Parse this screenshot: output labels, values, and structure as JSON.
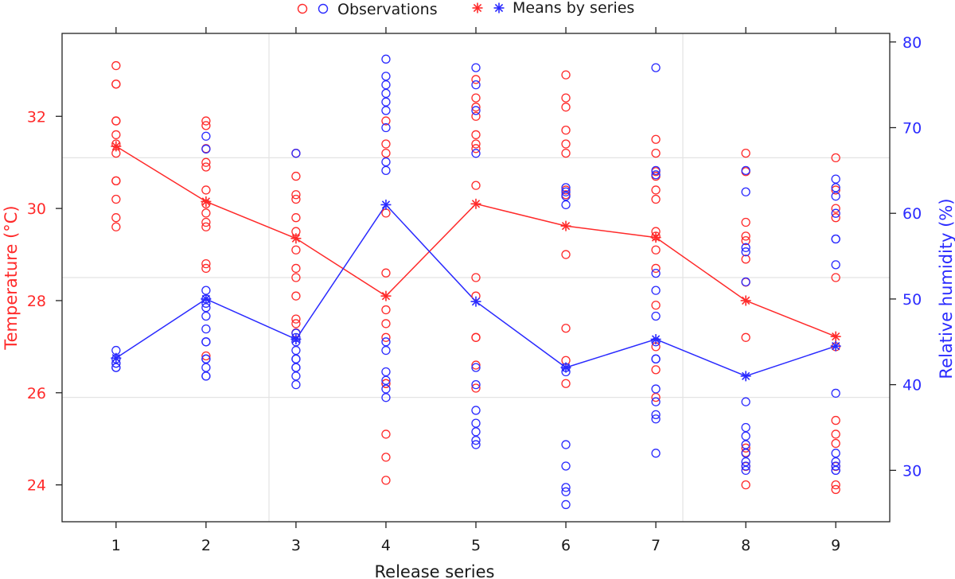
{
  "chart_data": {
    "type": "scatter",
    "xlabel": "Release series",
    "ylabel_left": "Temperature (°C)",
    "ylabel_right": "Relative humidity (%)",
    "xlim": [
      0.4,
      9.6
    ],
    "ylim_left": [
      23.2,
      33.8
    ],
    "ylim_right": [
      24,
      81
    ],
    "x_ticks": [
      1,
      2,
      3,
      4,
      5,
      6,
      7,
      8,
      9
    ],
    "y_ticks_left": [
      24,
      26,
      28,
      30,
      32
    ],
    "y_ticks_right": [
      30,
      40,
      50,
      60,
      70,
      80
    ],
    "grid_x": [
      2.7,
      7.3
    ],
    "grid_y_left": [
      25.9,
      28.5,
      31.1
    ],
    "colors": {
      "temperature": "#ff2a2a",
      "humidity": "#2a2aff"
    },
    "legend": {
      "observations_label": "Observations",
      "means_label": "Means by series",
      "position": "top"
    },
    "series": [
      {
        "name": "Temperature observations",
        "axis": "left",
        "points": [
          [
            1,
            33.1
          ],
          [
            1,
            32.7
          ],
          [
            1,
            32.7
          ],
          [
            1,
            31.9
          ],
          [
            1,
            31.9
          ],
          [
            1,
            31.6
          ],
          [
            1,
            31.4
          ],
          [
            1,
            31.2
          ],
          [
            1,
            30.6
          ],
          [
            1,
            30.6
          ],
          [
            1,
            30.2
          ],
          [
            1,
            29.8
          ],
          [
            1,
            29.6
          ],
          [
            2,
            31.9
          ],
          [
            2,
            31.8
          ],
          [
            2,
            31.3
          ],
          [
            2,
            31.0
          ],
          [
            2,
            30.9
          ],
          [
            2,
            30.4
          ],
          [
            2,
            30.1
          ],
          [
            2,
            29.9
          ],
          [
            2,
            29.7
          ],
          [
            2,
            29.6
          ],
          [
            2,
            28.8
          ],
          [
            2,
            28.7
          ],
          [
            2,
            26.8
          ],
          [
            3,
            31.2
          ],
          [
            3,
            30.7
          ],
          [
            3,
            30.3
          ],
          [
            3,
            30.2
          ],
          [
            3,
            29.8
          ],
          [
            3,
            29.5
          ],
          [
            3,
            29.1
          ],
          [
            3,
            28.7
          ],
          [
            3,
            28.5
          ],
          [
            3,
            28.1
          ],
          [
            3,
            27.6
          ],
          [
            3,
            27.5
          ],
          [
            3,
            27.3
          ],
          [
            4,
            31.9
          ],
          [
            4,
            31.4
          ],
          [
            4,
            31.2
          ],
          [
            4,
            29.9
          ],
          [
            4,
            28.6
          ],
          [
            4,
            27.8
          ],
          [
            4,
            27.5
          ],
          [
            4,
            27.2
          ],
          [
            4,
            26.2
          ],
          [
            4,
            26.2
          ],
          [
            4,
            25.1
          ],
          [
            4,
            24.6
          ],
          [
            4,
            24.1
          ],
          [
            5,
            32.8
          ],
          [
            5,
            32.4
          ],
          [
            5,
            32.2
          ],
          [
            5,
            32.0
          ],
          [
            5,
            31.6
          ],
          [
            5,
            31.4
          ],
          [
            5,
            31.3
          ],
          [
            5,
            30.5
          ],
          [
            5,
            28.5
          ],
          [
            5,
            28.1
          ],
          [
            5,
            27.2
          ],
          [
            5,
            27.2
          ],
          [
            5,
            26.6
          ],
          [
            5,
            26.1
          ],
          [
            6,
            32.9
          ],
          [
            6,
            32.4
          ],
          [
            6,
            32.2
          ],
          [
            6,
            31.7
          ],
          [
            6,
            31.4
          ],
          [
            6,
            31.2
          ],
          [
            6,
            30.4
          ],
          [
            6,
            30.3
          ],
          [
            6,
            29.0
          ],
          [
            6,
            27.4
          ],
          [
            6,
            26.7
          ],
          [
            6,
            26.2
          ],
          [
            7,
            31.5
          ],
          [
            7,
            31.2
          ],
          [
            7,
            30.8
          ],
          [
            7,
            30.7
          ],
          [
            7,
            30.4
          ],
          [
            7,
            30.2
          ],
          [
            7,
            29.5
          ],
          [
            7,
            29.4
          ],
          [
            7,
            29.1
          ],
          [
            7,
            28.7
          ],
          [
            7,
            27.9
          ],
          [
            7,
            27.0
          ],
          [
            7,
            26.5
          ],
          [
            7,
            25.9
          ],
          [
            8,
            31.2
          ],
          [
            8,
            30.8
          ],
          [
            8,
            29.7
          ],
          [
            8,
            29.4
          ],
          [
            8,
            29.3
          ],
          [
            8,
            28.9
          ],
          [
            8,
            28.4
          ],
          [
            8,
            27.2
          ],
          [
            8,
            24.8
          ],
          [
            8,
            24.7
          ],
          [
            8,
            24.4
          ],
          [
            8,
            24.0
          ],
          [
            9,
            31.1
          ],
          [
            9,
            30.4
          ],
          [
            9,
            30.0
          ],
          [
            9,
            29.8
          ],
          [
            9,
            28.5
          ],
          [
            9,
            27.0
          ],
          [
            9,
            25.4
          ],
          [
            9,
            25.1
          ],
          [
            9,
            24.9
          ],
          [
            9,
            24.4
          ],
          [
            9,
            24.0
          ],
          [
            9,
            23.9
          ]
        ]
      },
      {
        "name": "Relative humidity observations",
        "axis": "right",
        "points": [
          [
            1,
            44
          ],
          [
            1,
            43
          ],
          [
            1,
            42.5
          ],
          [
            1,
            42.5
          ],
          [
            1,
            42
          ],
          [
            1,
            42
          ],
          [
            2,
            69
          ],
          [
            2,
            67.5
          ],
          [
            2,
            51
          ],
          [
            2,
            50
          ],
          [
            2,
            49.5
          ],
          [
            2,
            49
          ],
          [
            2,
            48
          ],
          [
            2,
            46.5
          ],
          [
            2,
            45
          ],
          [
            2,
            45
          ],
          [
            2,
            43
          ],
          [
            2,
            42
          ],
          [
            2,
            41
          ],
          [
            2,
            41
          ],
          [
            2,
            43
          ],
          [
            3,
            67
          ],
          [
            3,
            46
          ],
          [
            3,
            45.5
          ],
          [
            3,
            45
          ],
          [
            3,
            44
          ],
          [
            3,
            43
          ],
          [
            3,
            43
          ],
          [
            3,
            42
          ],
          [
            3,
            42
          ],
          [
            3,
            41
          ],
          [
            3,
            40
          ],
          [
            4,
            78
          ],
          [
            4,
            76
          ],
          [
            4,
            75
          ],
          [
            4,
            74
          ],
          [
            4,
            73
          ],
          [
            4,
            72
          ],
          [
            4,
            70
          ],
          [
            4,
            66
          ],
          [
            4,
            65
          ],
          [
            4,
            45
          ],
          [
            4,
            44
          ],
          [
            4,
            41.5
          ],
          [
            4,
            40.5
          ],
          [
            4,
            39.5
          ],
          [
            4,
            38.5
          ],
          [
            5,
            77
          ],
          [
            5,
            75
          ],
          [
            5,
            72
          ],
          [
            5,
            67
          ],
          [
            5,
            42
          ],
          [
            5,
            40
          ],
          [
            5,
            37
          ],
          [
            5,
            35.5
          ],
          [
            5,
            34.5
          ],
          [
            5,
            33.5
          ],
          [
            5,
            33
          ],
          [
            6,
            63
          ],
          [
            6,
            62.5
          ],
          [
            6,
            62
          ],
          [
            6,
            61
          ],
          [
            6,
            42
          ],
          [
            6,
            41.5
          ],
          [
            6,
            33
          ],
          [
            6,
            30.5
          ],
          [
            6,
            28
          ],
          [
            6,
            27.5
          ],
          [
            6,
            26
          ],
          [
            7,
            77
          ],
          [
            7,
            65
          ],
          [
            7,
            64.5
          ],
          [
            7,
            53
          ],
          [
            7,
            51
          ],
          [
            7,
            48
          ],
          [
            7,
            45
          ],
          [
            7,
            43
          ],
          [
            7,
            43
          ],
          [
            7,
            39.5
          ],
          [
            7,
            38
          ],
          [
            7,
            36.5
          ],
          [
            7,
            36
          ],
          [
            7,
            32
          ],
          [
            8,
            65
          ],
          [
            8,
            62.5
          ],
          [
            8,
            56
          ],
          [
            8,
            55.5
          ],
          [
            8,
            52
          ],
          [
            8,
            38
          ],
          [
            8,
            35
          ],
          [
            8,
            34
          ],
          [
            8,
            33
          ],
          [
            8,
            32
          ],
          [
            8,
            31
          ],
          [
            8,
            30.5
          ],
          [
            8,
            30
          ],
          [
            9,
            64
          ],
          [
            9,
            63
          ],
          [
            9,
            62
          ],
          [
            9,
            60
          ],
          [
            9,
            57
          ],
          [
            9,
            57
          ],
          [
            9,
            54
          ],
          [
            9,
            39
          ],
          [
            9,
            32
          ],
          [
            9,
            31
          ],
          [
            9,
            30.5
          ],
          [
            9,
            30
          ],
          [
            9,
            30
          ]
        ]
      },
      {
        "name": "Temperature means by series",
        "axis": "left",
        "x": [
          1,
          2,
          3,
          4,
          5,
          6,
          7,
          8,
          9
        ],
        "values": [
          31.35,
          30.15,
          29.35,
          28.1,
          30.1,
          29.62,
          29.37,
          28.0,
          27.22
        ]
      },
      {
        "name": "Relative humidity means by series",
        "axis": "right",
        "x": [
          1,
          2,
          3,
          4,
          5,
          6,
          7,
          8,
          9
        ],
        "values": [
          43.1,
          50.0,
          45.3,
          61.0,
          49.7,
          42.0,
          45.3,
          41.0,
          44.5
        ]
      }
    ]
  }
}
